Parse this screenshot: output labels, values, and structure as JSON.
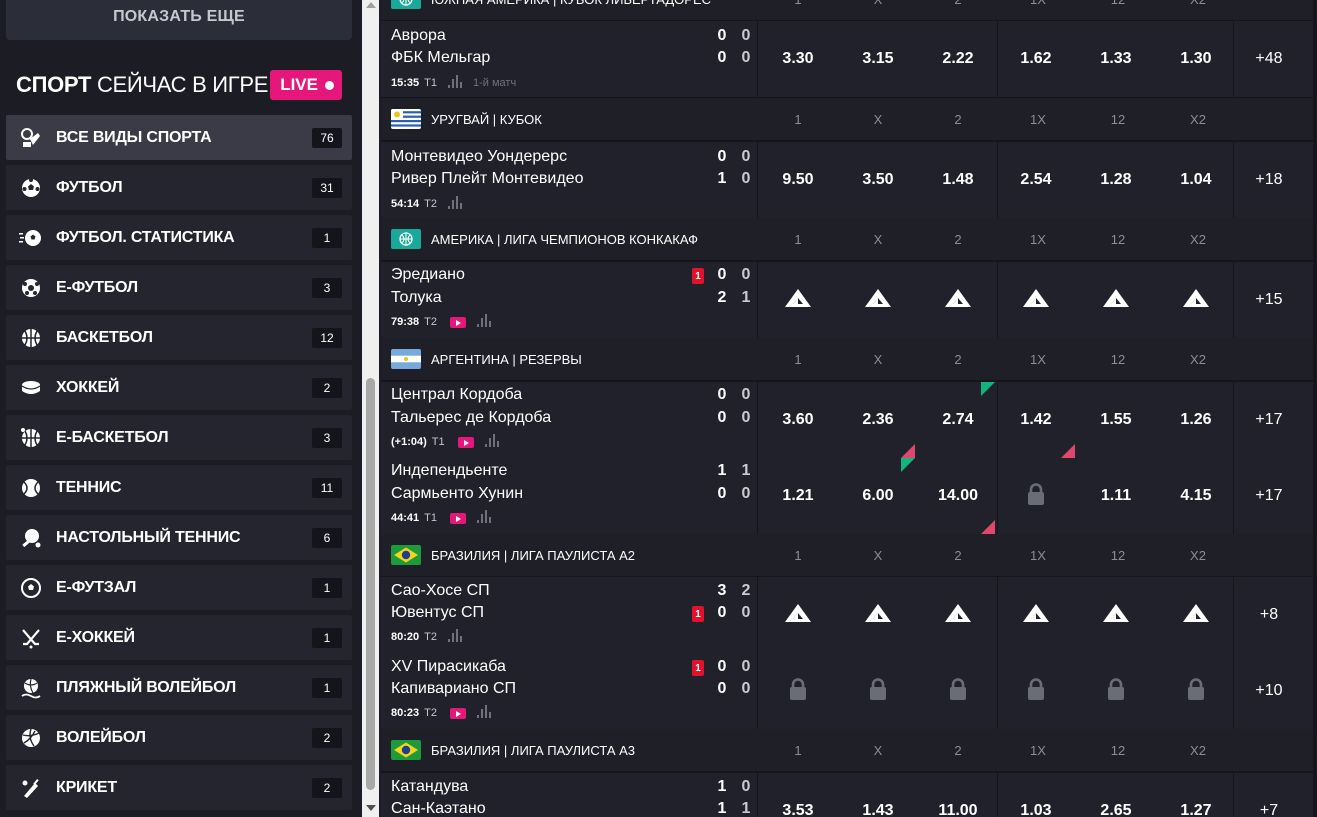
{
  "sidebar": {
    "show_more": "ПОКАЗАТЬ ЕЩЕ",
    "title_bold": "СПОРТ",
    "title_rest": " СЕЙЧАС В ИГРЕ",
    "live_label": "LIVE",
    "items": [
      {
        "label": "ВСЕ ВИДЫ СПОРТА",
        "count": "76",
        "icon": "all-sports-icon",
        "active": true
      },
      {
        "label": "ФУТБОЛ",
        "count": "31",
        "icon": "soccer-ball-icon"
      },
      {
        "label": "ФУТБОЛ. СТАТИСТИКА",
        "count": "1",
        "icon": "soccer-stats-icon"
      },
      {
        "label": "Е-ФУТБОЛ",
        "count": "3",
        "icon": "e-soccer-icon"
      },
      {
        "label": "БАСКЕТБОЛ",
        "count": "12",
        "icon": "basketball-icon"
      },
      {
        "label": "ХОККЕЙ",
        "count": "2",
        "icon": "hockey-puck-icon"
      },
      {
        "label": "Е-БАСКЕТБОЛ",
        "count": "3",
        "icon": "e-basketball-icon"
      },
      {
        "label": "ТЕННИС",
        "count": "11",
        "icon": "tennis-ball-icon"
      },
      {
        "label": "НАСТОЛЬНЫЙ ТЕННИС",
        "count": "6",
        "icon": "ping-pong-icon"
      },
      {
        "label": "Е-ФУТЗАЛ",
        "count": "1",
        "icon": "e-futsal-icon"
      },
      {
        "label": "Е-ХОККЕЙ",
        "count": "1",
        "icon": "hockey-sticks-icon"
      },
      {
        "label": "ПЛЯЖНЫЙ ВОЛЕЙБОЛ",
        "count": "1",
        "icon": "beach-volleyball-icon"
      },
      {
        "label": "ВОЛЕЙБОЛ",
        "count": "2",
        "icon": "volleyball-icon"
      },
      {
        "label": "КРИКЕТ",
        "count": "2",
        "icon": "cricket-icon"
      }
    ]
  },
  "headers": [
    "1",
    "X",
    "2",
    "1X",
    "12",
    "X2"
  ],
  "leagues": [
    {
      "name": "ЮЖНАЯ АМЕРИКА | КУБОК ЛИБЕРТАДОРЕС",
      "flag": "world"
    },
    {
      "name": "УРУГВАЙ | КУБОК",
      "flag": "uruguay"
    },
    {
      "name": "АМЕРИКА | ЛИГА ЧЕМПИОНОВ КОНКАКАФ",
      "flag": "world"
    },
    {
      "name": "АРГЕНТИНА | РЕЗЕРВЫ",
      "flag": "argentina"
    },
    {
      "name": "БРАЗИЛИЯ | ЛИГА ПАУЛИСТА А2",
      "flag": "brazil"
    },
    {
      "name": "БРАЗИЛИЯ | ЛИГА ПАУЛИСТА А3",
      "flag": "brazil"
    }
  ],
  "matches": [
    {
      "team1": "Аврора",
      "team2": "ФБК Мельгар",
      "s1a": "0",
      "s1b": "0",
      "s2a": "0",
      "s2b": "0",
      "time": "15:35",
      "half": "T1",
      "note": "1-й матч",
      "odds": [
        "3.30",
        "3.15",
        "2.22",
        "1.62",
        "1.33",
        "1.30"
      ],
      "more": "+48"
    },
    {
      "team1": "Монтевидео Уондерерс",
      "team2": "Ривер Плейт Монтевидео",
      "s1a": "0",
      "s1b": "0",
      "s2a": "1",
      "s2b": "0",
      "time": "54:14",
      "half": "T2",
      "odds": [
        "9.50",
        "3.50",
        "1.48",
        "2.54",
        "1.28",
        "1.04"
      ],
      "more": "+18"
    },
    {
      "team1": "Эредиано",
      "team2": "Толука",
      "s1a": "0",
      "s1b": "0",
      "s2a": "2",
      "s2b": "1",
      "card1": "1",
      "time": "79:38",
      "half": "T2",
      "odds": [
        "",
        "",
        "",
        "",
        "",
        ""
      ],
      "more": "+15"
    },
    {
      "team1": "Централ Кордоба",
      "team2": "Тальерес де Кордоба",
      "s1a": "0",
      "s1b": "0",
      "s2a": "0",
      "s2b": "0",
      "time": "(+1:04)",
      "half": "T1",
      "odds": [
        "3.60",
        "2.36",
        "2.74",
        "1.42",
        "1.55",
        "1.26"
      ],
      "more": "+17"
    },
    {
      "team1": "Индепендьенте",
      "team2": "Сармьенто Хунин",
      "s1a": "1",
      "s1b": "1",
      "s2a": "0",
      "s2b": "0",
      "time": "44:41",
      "half": "T1",
      "odds": [
        "1.21",
        "6.00",
        "14.00",
        "",
        "1.11",
        "4.15"
      ],
      "more": "+17"
    },
    {
      "team1": "Сао-Хосе СП",
      "team2": "Ювентус СП",
      "s1a": "3",
      "s1b": "2",
      "s2a": "0",
      "s2b": "0",
      "card2": "1",
      "time": "80:20",
      "half": "T2",
      "odds": [
        "",
        "",
        "",
        "",
        "",
        ""
      ],
      "more": "+8"
    },
    {
      "team1": "XV Пирасикаба",
      "team2": "Капиварианo СП",
      "s1a": "0",
      "s1b": "0",
      "s2a": "0",
      "s2b": "0",
      "card1": "1",
      "time": "80:23",
      "half": "T2",
      "odds": [
        "",
        "",
        "",
        "",
        "",
        ""
      ],
      "more": "+10"
    },
    {
      "team1": "Катандува",
      "team2": "Сан-Каэтано",
      "s1a": "1",
      "s1b": "0",
      "s2a": "1",
      "s2b": "1",
      "odds": [
        "3.53",
        "1.43",
        "11.00",
        "1.03",
        "2.65",
        "1.27"
      ],
      "more": "+7"
    }
  ]
}
